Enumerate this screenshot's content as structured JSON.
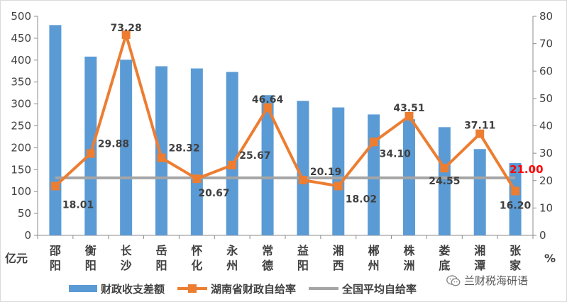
{
  "chart_data": {
    "type": "bar",
    "categories": [
      "邵阳",
      "衡阳",
      "长沙",
      "岳阳",
      "怀化",
      "永州",
      "常德",
      "益阳",
      "湘西",
      "郴州",
      "株洲",
      "娄底",
      "湘潭",
      "张家"
    ],
    "series": [
      {
        "name": "财政收支差额",
        "kind": "bar",
        "axis": "left",
        "color": "#5b9bd5",
        "values": [
          480,
          408,
          401,
          386,
          381,
          373,
          320,
          307,
          292,
          276,
          265,
          247,
          197,
          165
        ]
      },
      {
        "name": "湖南省财政自给率",
        "kind": "line",
        "axis": "right",
        "color": "#ed7d31",
        "values": [
          18.01,
          29.88,
          73.28,
          28.32,
          20.67,
          25.67,
          46.64,
          20.19,
          18.02,
          34.1,
          43.51,
          24.55,
          37.11,
          16.2
        ],
        "labels": [
          "18.01",
          "29.88",
          "73.28",
          "28.32",
          "20.67",
          "25.67",
          "46.64",
          "20.19",
          "18.02",
          "34.10",
          "43.51",
          "24.55",
          "37.11",
          "16.20"
        ]
      },
      {
        "name": "全国平均自给率",
        "kind": "line",
        "axis": "right",
        "color": "#a5a5a5",
        "value": 21.0,
        "label": "21.00",
        "label_color": "#ff0000"
      }
    ],
    "y_left": {
      "unit": "亿元",
      "range": [
        0,
        500
      ],
      "ticks": [
        0,
        50,
        100,
        150,
        200,
        250,
        300,
        350,
        400,
        450,
        500
      ]
    },
    "y_right": {
      "unit": "%",
      "range": [
        0,
        80
      ],
      "ticks": [
        0,
        10,
        20,
        30,
        40,
        50,
        60,
        70,
        80
      ]
    },
    "grid": false,
    "legend": "bottom"
  },
  "watermark": {
    "text": "兰财税海研语",
    "icon": "wechat-icon"
  }
}
